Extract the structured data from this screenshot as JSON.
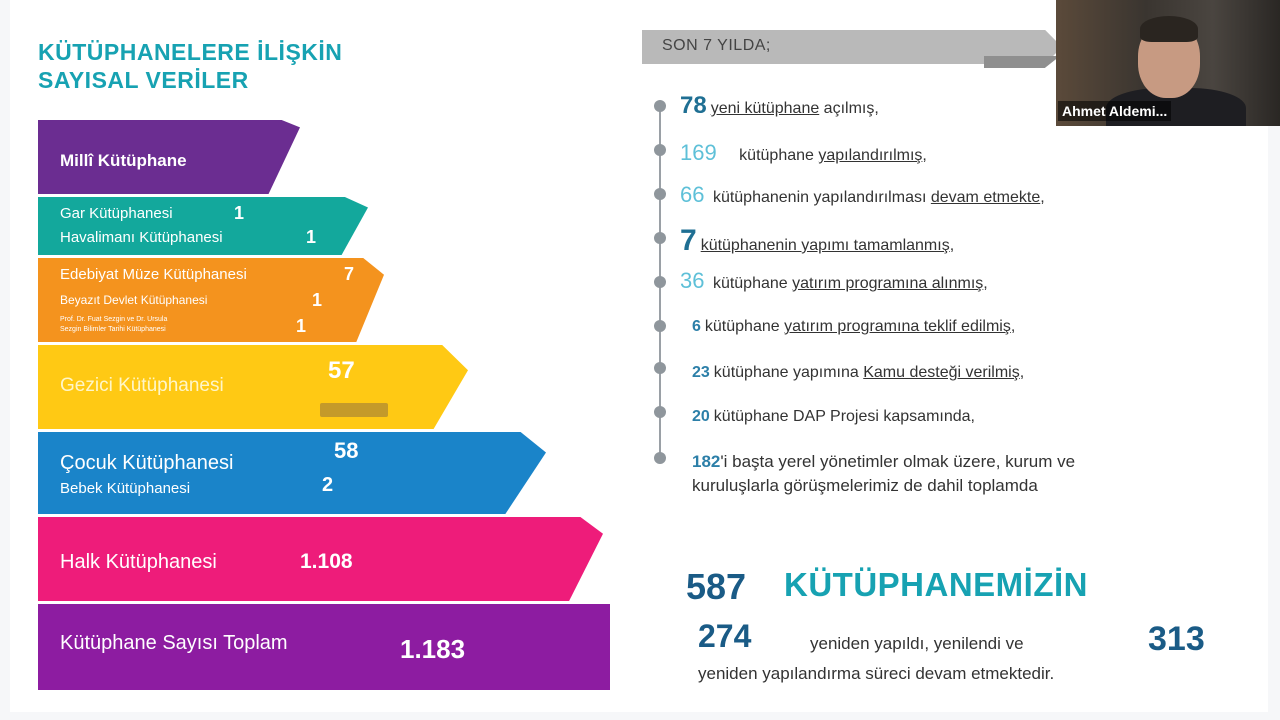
{
  "title": [
    "KÜTÜPHANELERE İLİŞKİN",
    "SAYISAL VERİLER"
  ],
  "bands": {
    "milli": {
      "label": "Millî  Kütüphane"
    },
    "gar": {
      "label1": "Gar Kütüphanesi",
      "val1": "1",
      "label2": "Havalimanı Kütüphanesi",
      "val2": "1"
    },
    "edebiyat": {
      "label1": "Edebiyat Müze Kütüphanesi",
      "val1": "7",
      "label2": "Beyazıt Devlet Kütüphanesi",
      "val2": "1",
      "label3a": "Prof. Dr. Fuat Sezgin ve Dr. Ursula",
      "label3b": "Sezgin Bilimler Tarihi Kütüphanesi",
      "val3": "1"
    },
    "gezici": {
      "label": "Gezici Kütüphanesi",
      "val": "57"
    },
    "cocuk": {
      "label1": "Çocuk Kütüphanesi",
      "val1": "58",
      "label2": "Bebek Kütüphanesi",
      "val2": "2"
    },
    "halk": {
      "label": "Halk Kütüphanesi",
      "val": "1.108"
    },
    "toplam": {
      "label": "Kütüphane Sayısı Toplam",
      "val": "1.183"
    }
  },
  "son": {
    "header": "SON 7 YILDA;"
  },
  "timeline": [
    {
      "num": "78",
      "pre": "",
      "u": "yeni kütüphane",
      "post": " açılmış,"
    },
    {
      "num": "169",
      "pre": "kütüphane ",
      "u": "yapılandırılmış",
      "post": ","
    },
    {
      "num": "66",
      "pre": "kütüphanenin yapılandırılması ",
      "u": "devam etmekte",
      "post": ","
    },
    {
      "num": "7",
      "pre": "",
      "u": "kütüphanenin yapımı tamamlanmış",
      "post": ","
    },
    {
      "num": "36",
      "pre": "kütüphane ",
      "u": "yatırım programına alınmış",
      "post": ","
    },
    {
      "num": "6",
      "pre": "kütüphane ",
      "u": "yatırım programına teklif edilmiş",
      "post": ","
    },
    {
      "num": "23",
      "pre": "kütüphane yapımına ",
      "u": "Kamu desteği verilmiş",
      "post": ","
    },
    {
      "num": "20",
      "pre": "kütüphane DAP Projesi kapsamında,",
      "u": "",
      "post": ""
    },
    {
      "num": "182",
      "pre": "'i başta yerel yönetimler olmak üzere, kurum ve",
      "u": "",
      "post": ""
    }
  ],
  "timeline_cont": "kuruluşlarla görüşmelerimiz de dahil toplamda",
  "summary": {
    "total": "587",
    "word": "KÜTÜPHANEMİZİN",
    "a": "274",
    "mid": "yeniden yapıldı, yenilendi ve",
    "b": "313",
    "line2": "yeniden yapılandırma süreci devam etmektedir."
  },
  "video": {
    "name": "Ahmet Aldemi..."
  }
}
